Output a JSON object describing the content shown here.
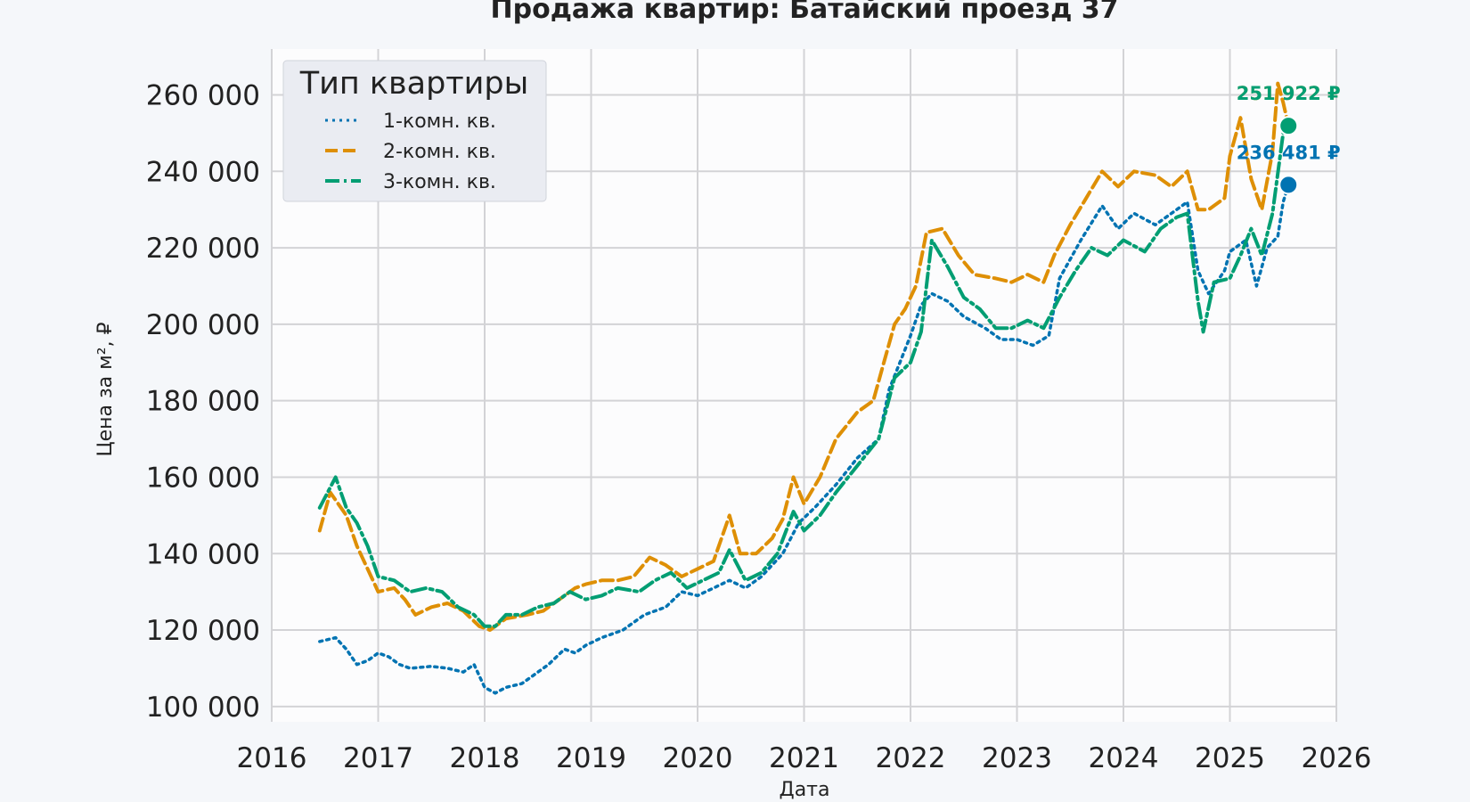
{
  "chart_data": {
    "type": "line",
    "title": "Продажа квартир: Батайский проезд 37",
    "xlabel": "Дата",
    "ylabel": "Цена за м², ₽",
    "xlim": [
      2016,
      2026
    ],
    "ylim": [
      96000,
      272000
    ],
    "x_ticks": [
      "2016",
      "2017",
      "2018",
      "2019",
      "2020",
      "2021",
      "2022",
      "2023",
      "2024",
      "2025",
      "2026"
    ],
    "y_ticks": [
      "100 000",
      "120 000",
      "140 000",
      "160 000",
      "180 000",
      "200 000",
      "220 000",
      "240 000",
      "260 000"
    ],
    "grid": true,
    "legend": {
      "title": "Тип квартиры",
      "placement": "top-left"
    },
    "series": [
      {
        "name": "1-комн. кв.",
        "color": "#0173b2",
        "style": "dotted",
        "end_label": "236 481 ₽",
        "end_value": 236481,
        "points": [
          [
            2016.45,
            117000
          ],
          [
            2016.6,
            118000
          ],
          [
            2016.7,
            115000
          ],
          [
            2016.8,
            111000
          ],
          [
            2016.9,
            112000
          ],
          [
            2017.0,
            114000
          ],
          [
            2017.1,
            113000
          ],
          [
            2017.2,
            111000
          ],
          [
            2017.3,
            110000
          ],
          [
            2017.5,
            110500
          ],
          [
            2017.65,
            110000
          ],
          [
            2017.8,
            109000
          ],
          [
            2017.9,
            111000
          ],
          [
            2018.0,
            105000
          ],
          [
            2018.1,
            103500
          ],
          [
            2018.2,
            105000
          ],
          [
            2018.35,
            106000
          ],
          [
            2018.5,
            109000
          ],
          [
            2018.6,
            111000
          ],
          [
            2018.75,
            115000
          ],
          [
            2018.85,
            114000
          ],
          [
            2018.95,
            116000
          ],
          [
            2019.1,
            118000
          ],
          [
            2019.3,
            120000
          ],
          [
            2019.5,
            124000
          ],
          [
            2019.7,
            126000
          ],
          [
            2019.85,
            130000
          ],
          [
            2020.0,
            129000
          ],
          [
            2020.15,
            131000
          ],
          [
            2020.3,
            133000
          ],
          [
            2020.45,
            131000
          ],
          [
            2020.6,
            134000
          ],
          [
            2020.8,
            140000
          ],
          [
            2020.95,
            148000
          ],
          [
            2021.1,
            152000
          ],
          [
            2021.3,
            158000
          ],
          [
            2021.5,
            165000
          ],
          [
            2021.7,
            170000
          ],
          [
            2021.8,
            183000
          ],
          [
            2021.9,
            190000
          ],
          [
            2022.0,
            197000
          ],
          [
            2022.1,
            205000
          ],
          [
            2022.2,
            208000
          ],
          [
            2022.35,
            206000
          ],
          [
            2022.5,
            202000
          ],
          [
            2022.7,
            199000
          ],
          [
            2022.85,
            196000
          ],
          [
            2023.0,
            196000
          ],
          [
            2023.15,
            194500
          ],
          [
            2023.3,
            197000
          ],
          [
            2023.4,
            212000
          ],
          [
            2023.6,
            222000
          ],
          [
            2023.8,
            231000
          ],
          [
            2023.95,
            225000
          ],
          [
            2024.1,
            229000
          ],
          [
            2024.3,
            226000
          ],
          [
            2024.5,
            230000
          ],
          [
            2024.6,
            232000
          ],
          [
            2024.7,
            214000
          ],
          [
            2024.8,
            208000
          ],
          [
            2024.95,
            214000
          ],
          [
            2025.0,
            219000
          ],
          [
            2025.15,
            222000
          ],
          [
            2025.25,
            210000
          ],
          [
            2025.35,
            220000
          ],
          [
            2025.45,
            223000
          ],
          [
            2025.5,
            232000
          ],
          [
            2025.55,
            236481
          ]
        ]
      },
      {
        "name": "2-комн. кв.",
        "color": "#de8f05",
        "style": "dashed",
        "end_label": "251 922 ₽",
        "end_value": 251922,
        "points": [
          [
            2016.45,
            146000
          ],
          [
            2016.55,
            156000
          ],
          [
            2016.7,
            150000
          ],
          [
            2016.8,
            142000
          ],
          [
            2016.9,
            136000
          ],
          [
            2017.0,
            130000
          ],
          [
            2017.15,
            131000
          ],
          [
            2017.25,
            128000
          ],
          [
            2017.35,
            124000
          ],
          [
            2017.5,
            126000
          ],
          [
            2017.65,
            127000
          ],
          [
            2017.8,
            125000
          ],
          [
            2017.95,
            121000
          ],
          [
            2018.05,
            120000
          ],
          [
            2018.2,
            123000
          ],
          [
            2018.4,
            124000
          ],
          [
            2018.55,
            125000
          ],
          [
            2018.7,
            128000
          ],
          [
            2018.85,
            131000
          ],
          [
            2018.95,
            132000
          ],
          [
            2019.1,
            133000
          ],
          [
            2019.25,
            133000
          ],
          [
            2019.4,
            134000
          ],
          [
            2019.55,
            139000
          ],
          [
            2019.7,
            137000
          ],
          [
            2019.85,
            134000
          ],
          [
            2020.0,
            136000
          ],
          [
            2020.15,
            138000
          ],
          [
            2020.3,
            150000
          ],
          [
            2020.4,
            140000
          ],
          [
            2020.55,
            140000
          ],
          [
            2020.7,
            144000
          ],
          [
            2020.8,
            149000
          ],
          [
            2020.9,
            160000
          ],
          [
            2021.0,
            153000
          ],
          [
            2021.15,
            160000
          ],
          [
            2021.3,
            170000
          ],
          [
            2021.5,
            177000
          ],
          [
            2021.65,
            180000
          ],
          [
            2021.75,
            190000
          ],
          [
            2021.85,
            200000
          ],
          [
            2021.95,
            204000
          ],
          [
            2022.05,
            210000
          ],
          [
            2022.15,
            224000
          ],
          [
            2022.3,
            225000
          ],
          [
            2022.45,
            218000
          ],
          [
            2022.6,
            213000
          ],
          [
            2022.8,
            212000
          ],
          [
            2022.95,
            211000
          ],
          [
            2023.1,
            213000
          ],
          [
            2023.25,
            211000
          ],
          [
            2023.35,
            218000
          ],
          [
            2023.5,
            226000
          ],
          [
            2023.65,
            233000
          ],
          [
            2023.8,
            240000
          ],
          [
            2023.95,
            236000
          ],
          [
            2024.1,
            240000
          ],
          [
            2024.3,
            239000
          ],
          [
            2024.45,
            236000
          ],
          [
            2024.6,
            240000
          ],
          [
            2024.7,
            230000
          ],
          [
            2024.8,
            230000
          ],
          [
            2024.95,
            233000
          ],
          [
            2025.0,
            244000
          ],
          [
            2025.1,
            254000
          ],
          [
            2025.2,
            238000
          ],
          [
            2025.3,
            230000
          ],
          [
            2025.4,
            245000
          ],
          [
            2025.45,
            263000
          ],
          [
            2025.5,
            258000
          ],
          [
            2025.55,
            251922
          ]
        ]
      },
      {
        "name": "3-комн. кв.",
        "color": "#029e73",
        "style": "dashdot",
        "end_label": "251 922 ₽",
        "end_value": 251922,
        "points": [
          [
            2016.45,
            152000
          ],
          [
            2016.6,
            160000
          ],
          [
            2016.7,
            152000
          ],
          [
            2016.8,
            148000
          ],
          [
            2016.9,
            142000
          ],
          [
            2017.0,
            134000
          ],
          [
            2017.15,
            133000
          ],
          [
            2017.3,
            130000
          ],
          [
            2017.45,
            131000
          ],
          [
            2017.6,
            130000
          ],
          [
            2017.75,
            126000
          ],
          [
            2017.9,
            124000
          ],
          [
            2018.0,
            121000
          ],
          [
            2018.1,
            121000
          ],
          [
            2018.2,
            124000
          ],
          [
            2018.35,
            124000
          ],
          [
            2018.5,
            126000
          ],
          [
            2018.65,
            127000
          ],
          [
            2018.8,
            130000
          ],
          [
            2018.95,
            128000
          ],
          [
            2019.1,
            129000
          ],
          [
            2019.25,
            131000
          ],
          [
            2019.45,
            130000
          ],
          [
            2019.6,
            133000
          ],
          [
            2019.75,
            135000
          ],
          [
            2019.9,
            131000
          ],
          [
            2020.05,
            133000
          ],
          [
            2020.2,
            135000
          ],
          [
            2020.3,
            141000
          ],
          [
            2020.45,
            133000
          ],
          [
            2020.6,
            135000
          ],
          [
            2020.75,
            140000
          ],
          [
            2020.9,
            151000
          ],
          [
            2021.0,
            146000
          ],
          [
            2021.15,
            150000
          ],
          [
            2021.3,
            156000
          ],
          [
            2021.5,
            163000
          ],
          [
            2021.7,
            170000
          ],
          [
            2021.85,
            186000
          ],
          [
            2022.0,
            190000
          ],
          [
            2022.1,
            198000
          ],
          [
            2022.2,
            222000
          ],
          [
            2022.35,
            215000
          ],
          [
            2022.5,
            207000
          ],
          [
            2022.65,
            204000
          ],
          [
            2022.8,
            199000
          ],
          [
            2022.95,
            199000
          ],
          [
            2023.1,
            201000
          ],
          [
            2023.25,
            199000
          ],
          [
            2023.4,
            207000
          ],
          [
            2023.55,
            214000
          ],
          [
            2023.7,
            220000
          ],
          [
            2023.85,
            218000
          ],
          [
            2024.0,
            222000
          ],
          [
            2024.2,
            219000
          ],
          [
            2024.35,
            225000
          ],
          [
            2024.5,
            228000
          ],
          [
            2024.6,
            229000
          ],
          [
            2024.7,
            206000
          ],
          [
            2024.75,
            198000
          ],
          [
            2024.85,
            211000
          ],
          [
            2025.0,
            212000
          ],
          [
            2025.1,
            218000
          ],
          [
            2025.2,
            225000
          ],
          [
            2025.3,
            218000
          ],
          [
            2025.4,
            229000
          ],
          [
            2025.5,
            250000
          ],
          [
            2025.55,
            251922
          ]
        ]
      }
    ]
  }
}
